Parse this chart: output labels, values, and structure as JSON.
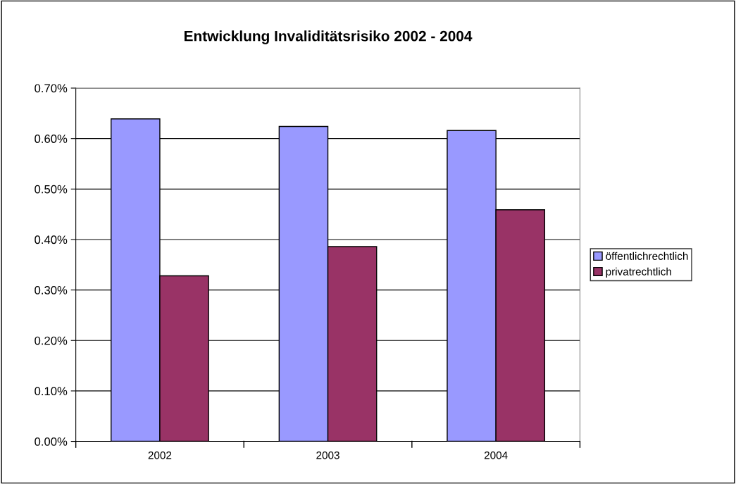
{
  "chart_data": {
    "type": "bar",
    "title": "Entwicklung Invaliditätsrisiko 2002 - 2004",
    "categories": [
      "2002",
      "2003",
      "2004"
    ],
    "series": [
      {
        "name": "öffentlichrechtlich",
        "color": "#9999ff",
        "values": [
          0.639,
          0.624,
          0.616
        ]
      },
      {
        "name": "privatrechtlich",
        "color": "#993366",
        "values": [
          0.328,
          0.386,
          0.459
        ]
      }
    ],
    "ylim": [
      0,
      0.7
    ],
    "yticks": [
      {
        "value": 0,
        "label": "0.00%"
      },
      {
        "value": 0.1,
        "label": "0.10%"
      },
      {
        "value": 0.2,
        "label": "0.20%"
      },
      {
        "value": 0.3,
        "label": "0.30%"
      },
      {
        "value": 0.4,
        "label": "0.40%"
      },
      {
        "value": 0.5,
        "label": "0.50%"
      },
      {
        "value": 0.6,
        "label": "0.60%"
      },
      {
        "value": 0.7,
        "label": "0.70%"
      }
    ],
    "grid": "y",
    "legend": "right"
  }
}
